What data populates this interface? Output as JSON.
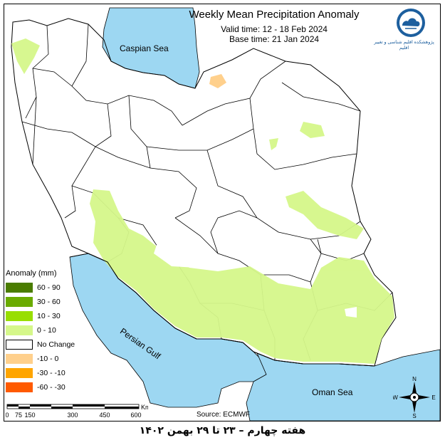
{
  "header": {
    "title": "Weekly Mean Precipitation Anomaly",
    "valid_time": "Valid time:  12 - 18 Feb 2024",
    "base_time": "Base time: 21 Jan 2024"
  },
  "logo": {
    "text": "پژوهشکده اقلیم شناسی و تغییر اقلیم",
    "icon": "cloud-logo-icon"
  },
  "map": {
    "labels": {
      "caspian": "Caspian Sea",
      "gulf": "Persian Gulf",
      "oman": "Oman Sea"
    },
    "colors": {
      "sea": "#9dd7f2",
      "land": "#ffffff",
      "border": "#000000"
    }
  },
  "legend": {
    "title": "Anomaly (mm)",
    "items": [
      {
        "label": "60 - 90",
        "color": "#4a7c00"
      },
      {
        "label": "30 - 60",
        "color": "#6aab00"
      },
      {
        "label": "10 - 30",
        "color": "#98de00"
      },
      {
        "label": "0 - 10",
        "color": "#d5f78a"
      },
      {
        "label": "No Change",
        "color": "#ffffff"
      },
      {
        "label": "-10 - 0",
        "color": "#ffd08c"
      },
      {
        "label": "-30 - -10",
        "color": "#ffa500"
      },
      {
        "label": "-60 - -30",
        "color": "#ff5a00"
      }
    ]
  },
  "scale": {
    "ticks": [
      "0",
      "75",
      "150",
      "300",
      "450",
      "600"
    ],
    "unit": "Km"
  },
  "compass": {
    "n": "N",
    "s": "S",
    "e": "E",
    "w": "W"
  },
  "source": "Source: ECMWF",
  "footer": "هفته چهارم – ۲۳ تا ۲۹ بهمن ۱۴۰۲"
}
